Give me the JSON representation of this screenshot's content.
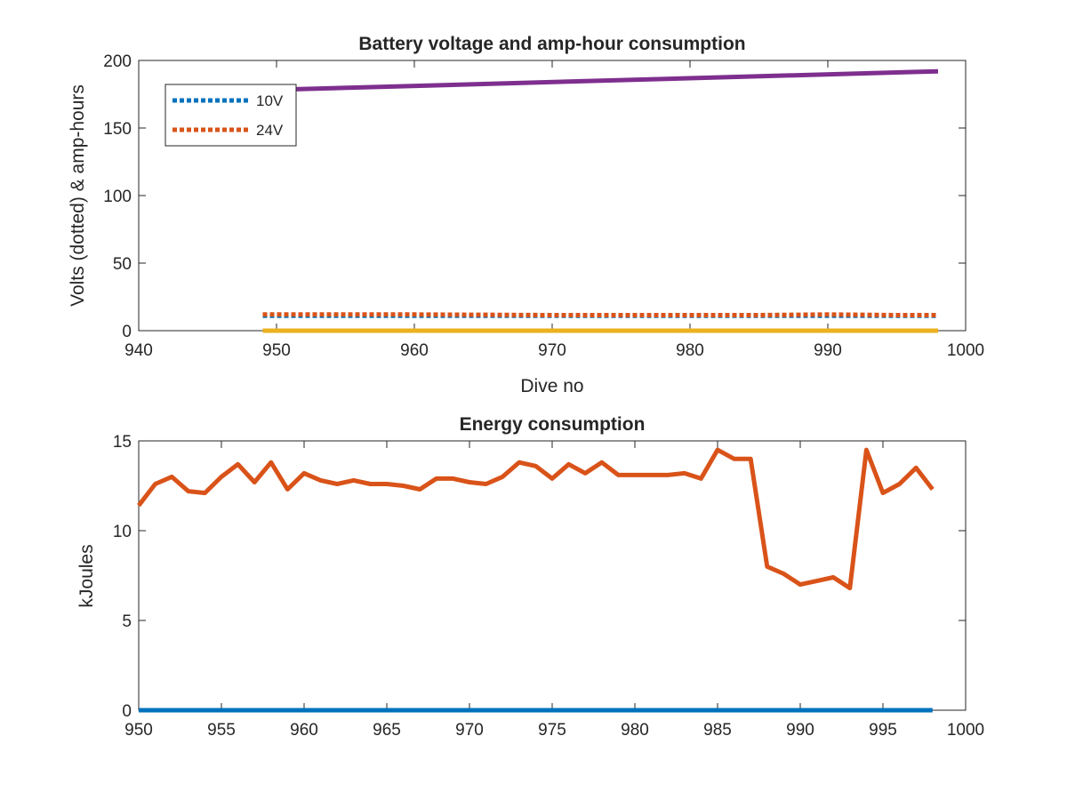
{
  "chart_data": [
    {
      "type": "line",
      "title": "Battery voltage and amp-hour consumption",
      "xlabel": "Dive no",
      "ylabel": "Volts (dotted) & amp-hours",
      "xlim": [
        940,
        1000
      ],
      "ylim": [
        0,
        200
      ],
      "xticks": [
        940,
        950,
        960,
        970,
        980,
        990,
        1000
      ],
      "yticks": [
        0,
        50,
        100,
        150,
        200
      ],
      "grid": false,
      "legend_position": "top-left",
      "series": [
        {
          "name": "10V",
          "style": "dotted",
          "color": "#0072BD",
          "x": [
            949,
            998
          ],
          "y": [
            11,
            11
          ]
        },
        {
          "name": "24V",
          "style": "dotted",
          "color": "#D95319",
          "x": [
            949,
            960,
            970,
            980,
            985,
            990,
            995,
            998
          ],
          "y": [
            12,
            12,
            11.5,
            11.5,
            11.5,
            12,
            11.5,
            11.5
          ]
        },
        {
          "style": "solid",
          "color": "#EDB120",
          "x": [
            949,
            998
          ],
          "y": [
            0,
            0
          ]
        },
        {
          "style": "solid",
          "color": "#7E2F8E",
          "x": [
            949,
            998
          ],
          "y": [
            178,
            192
          ]
        }
      ]
    },
    {
      "type": "line",
      "title": "Energy consumption",
      "xlabel": "",
      "ylabel": "kJoules",
      "xlim": [
        950,
        1000
      ],
      "ylim": [
        0,
        15
      ],
      "xticks": [
        950,
        955,
        960,
        965,
        970,
        975,
        980,
        985,
        990,
        995,
        1000
      ],
      "yticks": [
        0,
        5,
        10,
        15
      ],
      "grid": false,
      "series": [
        {
          "style": "solid",
          "color": "#0072BD",
          "x": [
            950,
            998
          ],
          "y": [
            0,
            0
          ]
        },
        {
          "style": "solid",
          "color": "#D95319",
          "x": [
            950,
            951,
            952,
            953,
            954,
            955,
            956,
            957,
            958,
            959,
            960,
            961,
            962,
            963,
            964,
            965,
            966,
            967,
            968,
            969,
            970,
            971,
            972,
            973,
            974,
            975,
            976,
            977,
            978,
            979,
            980,
            981,
            982,
            983,
            984,
            985,
            986,
            987,
            988,
            989,
            990,
            991,
            992,
            993,
            994,
            995,
            996,
            997,
            998
          ],
          "y": [
            11.4,
            12.6,
            13.0,
            12.2,
            12.1,
            13.0,
            13.7,
            12.7,
            13.8,
            12.3,
            13.2,
            12.8,
            12.6,
            12.8,
            12.6,
            12.6,
            12.5,
            12.3,
            12.9,
            12.9,
            12.7,
            12.6,
            13.0,
            13.8,
            13.6,
            12.9,
            13.7,
            13.2,
            13.8,
            13.1,
            13.1,
            13.1,
            13.1,
            13.2,
            12.9,
            14.5,
            14.0,
            14.0,
            8.0,
            7.6,
            7.0,
            7.2,
            7.4,
            6.8,
            14.5,
            12.1,
            12.6,
            13.5,
            12.3
          ]
        }
      ]
    }
  ]
}
